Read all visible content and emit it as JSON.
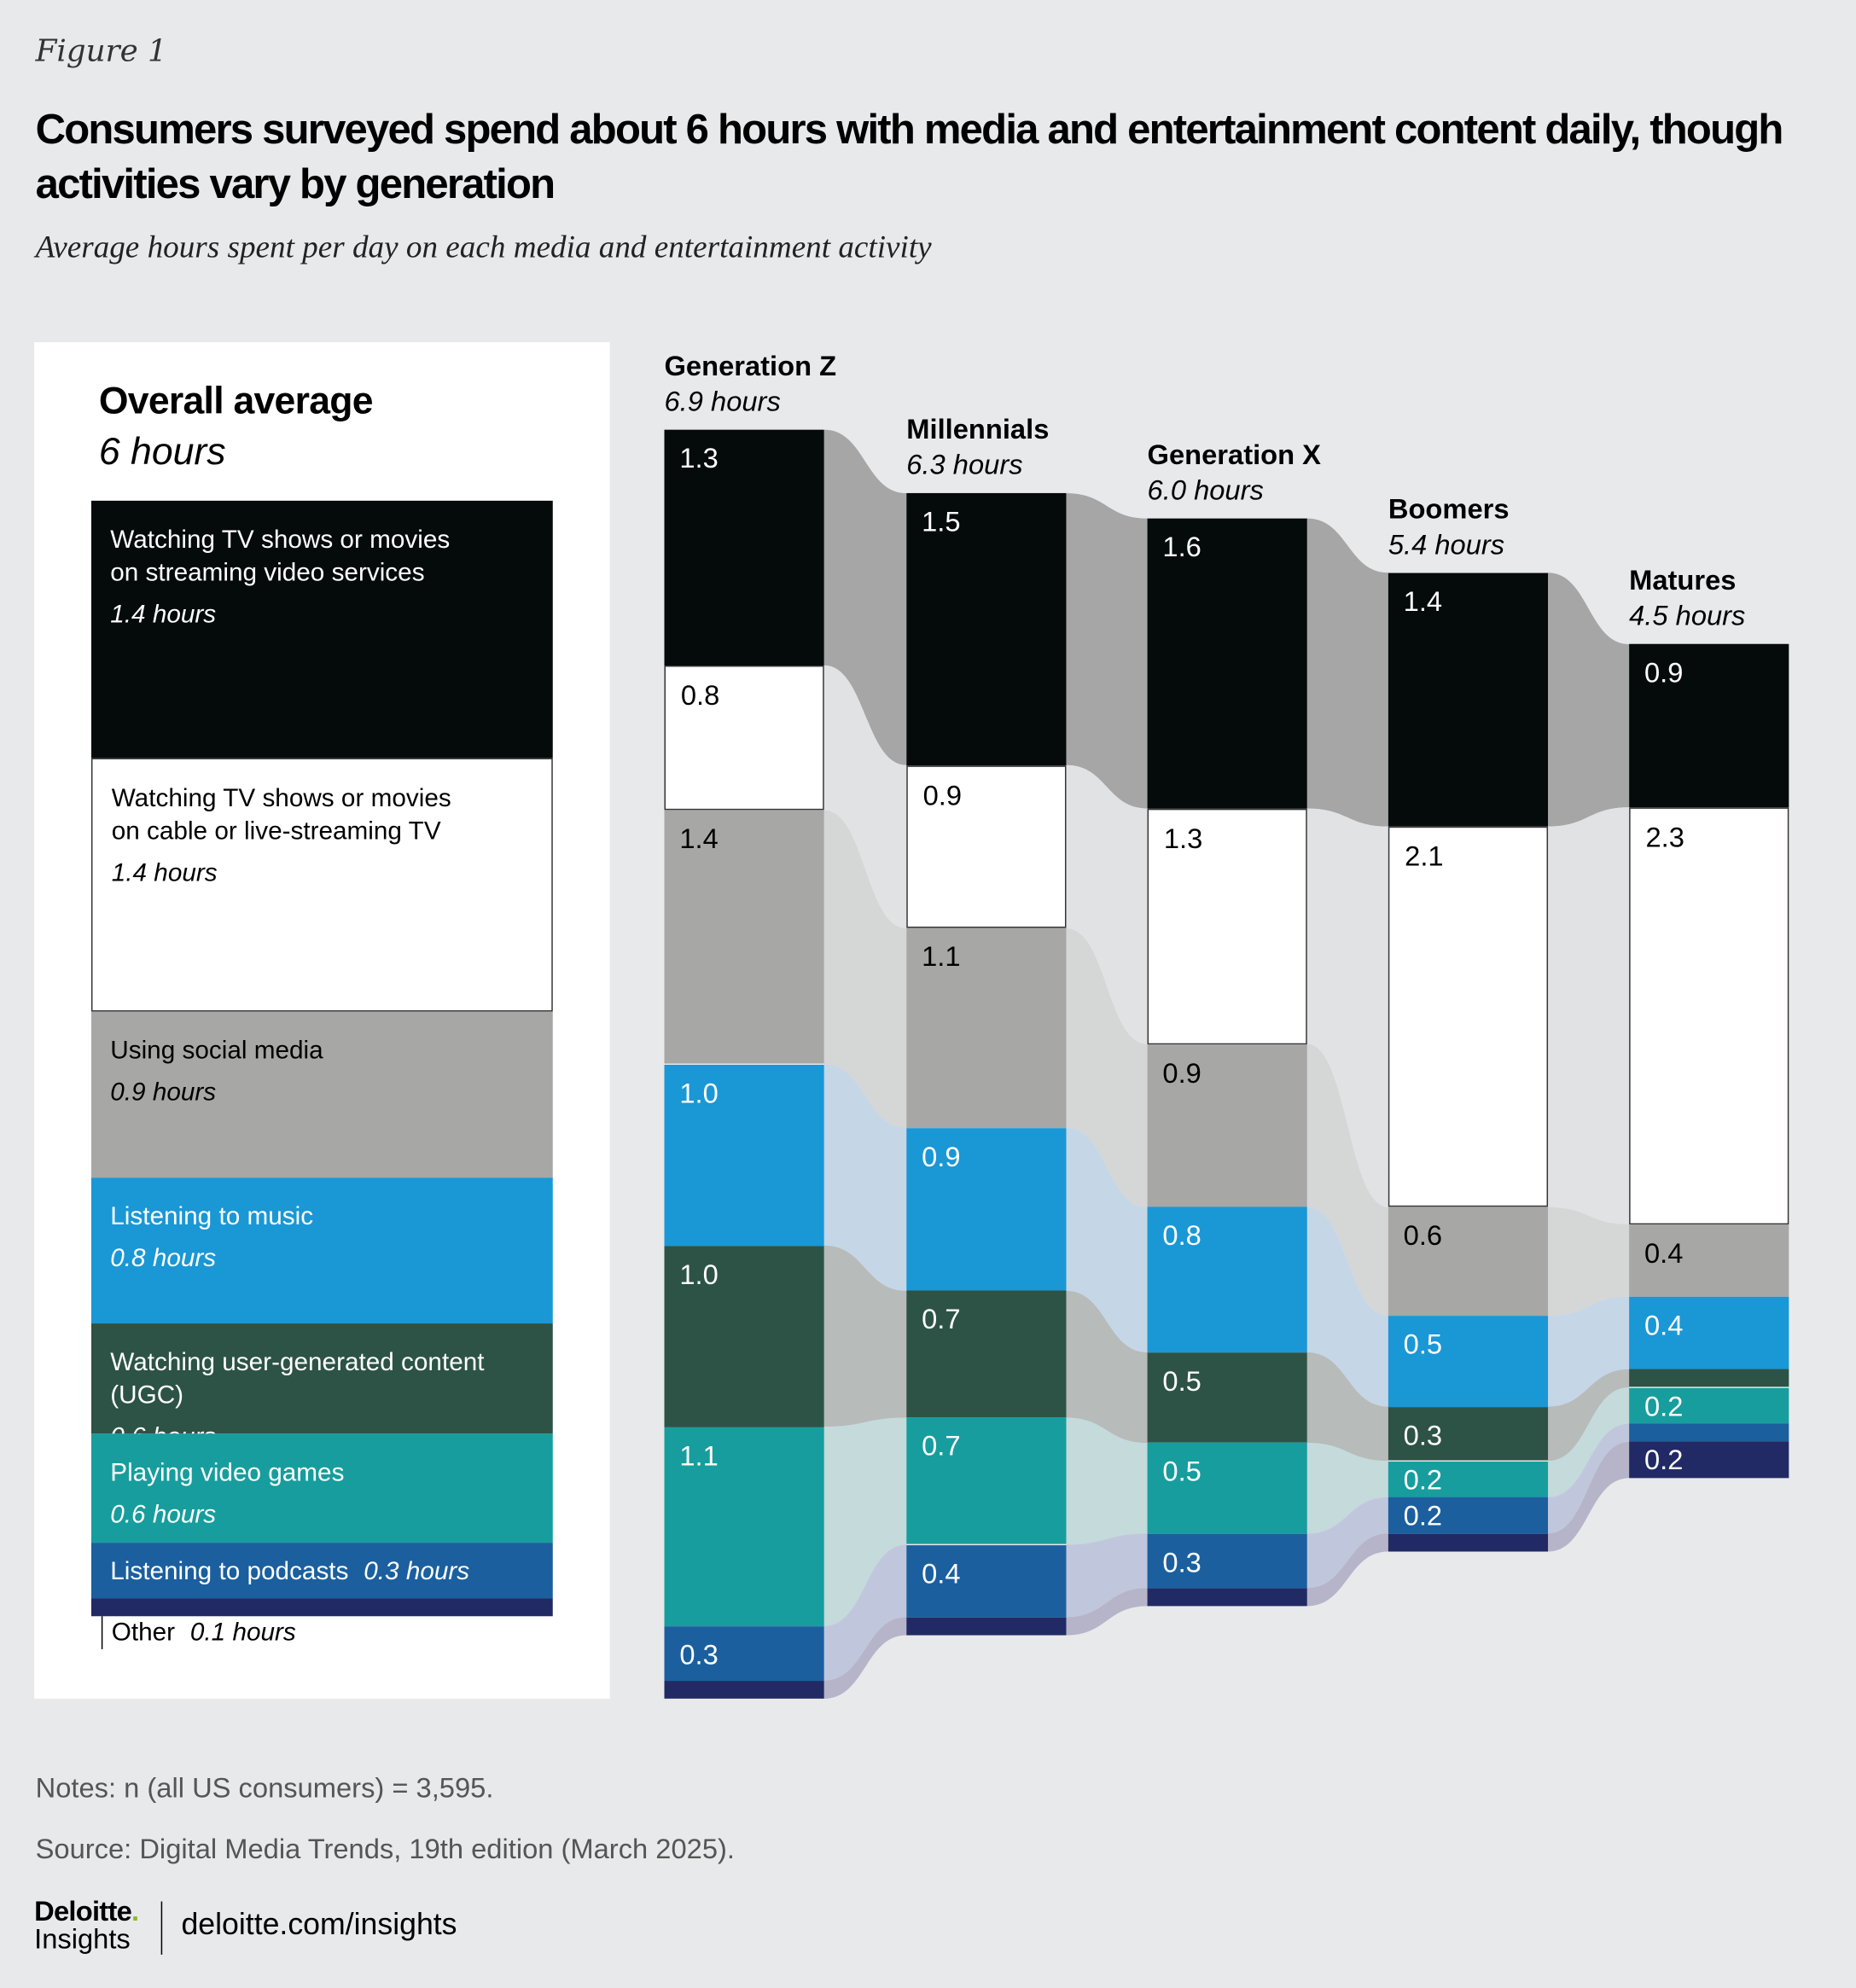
{
  "figure_label": "Figure 1",
  "title": "Consumers surveyed spend about 6 hours with media and entertainment content daily, though activities vary by generation",
  "subtitle": "Average hours spent per day on each media and entertainment activity",
  "overall": {
    "title": "Overall average",
    "subtitle": "6 hours"
  },
  "chart_data": {
    "type": "stacked-bar-flow",
    "unit": "hours per day",
    "categories": [
      {
        "name": "Watching TV shows or movies on streaming video services",
        "overall": "1.4 hours",
        "overall_value": 1.4,
        "color": "#050a0b",
        "flow": "#a6a6a6",
        "text": "#fff"
      },
      {
        "name": "Watching TV shows or movies on cable or live-streaming TV",
        "overall": "1.4 hours",
        "overall_value": 1.4,
        "color": "#ffffff",
        "flow": "#e1e2e4",
        "text": "#000"
      },
      {
        "name": "Using social media",
        "overall": "0.9 hours",
        "overall_value": 0.9,
        "color": "#a7a7a5",
        "flow": "#d5d6d6",
        "text": "#000"
      },
      {
        "name": "Listening to music",
        "overall": "0.8 hours",
        "overall_value": 0.8,
        "color": "#1a97d5",
        "flow": "#c5d6e7",
        "text": "#fff"
      },
      {
        "name": "Watching user-generated content (UGC)",
        "overall": "0.6 hours",
        "overall_value": 0.6,
        "color": "#2c5346",
        "flow": "#b7bbba",
        "text": "#fff"
      },
      {
        "name": "Playing video games",
        "overall": "0.6 hours",
        "overall_value": 0.6,
        "color": "#179d9d",
        "flow": "#c4dadb",
        "text": "#fff"
      },
      {
        "name": "Listening to podcasts",
        "overall": "0.3 hours",
        "overall_value": 0.3,
        "color": "#1b5f9e",
        "flow": "#c0c7dc",
        "text": "#fff"
      },
      {
        "name": "Other",
        "overall": "0.1 hours",
        "overall_value": 0.1,
        "color": "#212a64",
        "flow": "#b6b4c8",
        "text": "#fff"
      }
    ],
    "series": [
      {
        "name": "Generation Z",
        "total": "6.9 hours",
        "values": [
          1.3,
          0.8,
          1.4,
          1.0,
          1.0,
          1.1,
          0.3,
          0.1
        ],
        "labels": [
          "1.3",
          "0.8",
          "1.4",
          "1.0",
          "1.0",
          "1.1",
          "0.3",
          ""
        ]
      },
      {
        "name": "Millennials",
        "total": "6.3 hours",
        "values": [
          1.5,
          0.9,
          1.1,
          0.9,
          0.7,
          0.7,
          0.4,
          0.1
        ],
        "labels": [
          "1.5",
          "0.9",
          "1.1",
          "0.9",
          "0.7",
          "0.7",
          "0.4",
          ""
        ]
      },
      {
        "name": "Generation X",
        "total": "6.0 hours",
        "values": [
          1.6,
          1.3,
          0.9,
          0.8,
          0.5,
          0.5,
          0.3,
          0.1
        ],
        "labels": [
          "1.6",
          "1.3",
          "0.9",
          "0.8",
          "0.5",
          "0.5",
          "0.3",
          ""
        ]
      },
      {
        "name": "Boomers",
        "total": "5.4 hours",
        "values": [
          1.4,
          2.1,
          0.6,
          0.5,
          0.3,
          0.2,
          0.2,
          0.1
        ],
        "labels": [
          "1.4",
          "2.1",
          "0.6",
          "0.5",
          "0.3",
          "0.2",
          "0.2",
          ""
        ]
      },
      {
        "name": "Matures",
        "total": "4.5 hours",
        "values": [
          0.9,
          2.3,
          0.4,
          0.4,
          0.1,
          0.2,
          0.1,
          0.2
        ],
        "labels": [
          "0.9",
          "2.3",
          "0.4",
          "0.4",
          "",
          "0.2",
          "",
          "0.2"
        ]
      }
    ]
  },
  "notes": "Notes: n (all US consumers) = 3,595.",
  "source": "Source: Digital Media Trends, 19th edition (March 2025).",
  "logo": {
    "brand": "Deloitte",
    "dot": ".",
    "product": "Insights"
  },
  "url": "deloitte.com/insights"
}
